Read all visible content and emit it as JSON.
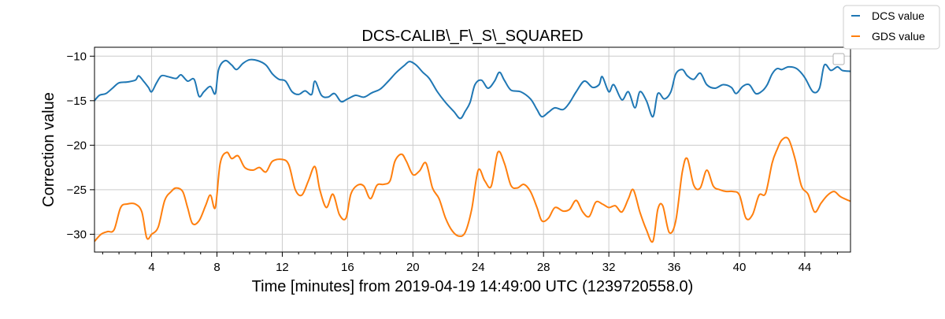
{
  "chart_data": {
    "type": "line",
    "title": "DCS-CALIB\\_F\\_S\\_SQUARED",
    "xlabel": "Time [minutes] from 2019-04-19 14:49:00 UTC (1239720558.0)",
    "ylabel": "Correction value",
    "xlim": [
      0.5,
      46.8
    ],
    "ylim": [
      -32,
      -9
    ],
    "xticks": [
      4,
      8,
      12,
      16,
      20,
      24,
      28,
      32,
      36,
      40,
      44
    ],
    "yticks": [
      -30,
      -25,
      -20,
      -15,
      -10
    ],
    "xtick_labels": [
      "4",
      "8",
      "12",
      "16",
      "20",
      "24",
      "28",
      "32",
      "36",
      "40",
      "44"
    ],
    "ytick_labels": [
      "−30",
      "−25",
      "−20",
      "−15",
      "−10"
    ],
    "grid": true,
    "legend_placement": "top-right-outside",
    "series": [
      {
        "name": "DCS value",
        "color": "#1f77b4",
        "points": [
          [
            0.5,
            -15.0
          ],
          [
            0.8,
            -14.4
          ],
          [
            1.2,
            -14.2
          ],
          [
            1.6,
            -13.6
          ],
          [
            2.0,
            -13.0
          ],
          [
            2.5,
            -12.9
          ],
          [
            3.0,
            -12.7
          ],
          [
            3.2,
            -12.2
          ],
          [
            3.5,
            -12.8
          ],
          [
            3.8,
            -13.5
          ],
          [
            4.0,
            -14.0
          ],
          [
            4.3,
            -13.0
          ],
          [
            4.6,
            -12.2
          ],
          [
            5.0,
            -12.3
          ],
          [
            5.5,
            -12.5
          ],
          [
            5.8,
            -12.1
          ],
          [
            6.2,
            -12.8
          ],
          [
            6.6,
            -12.6
          ],
          [
            6.9,
            -14.5
          ],
          [
            7.2,
            -14.0
          ],
          [
            7.6,
            -13.4
          ],
          [
            7.9,
            -14.2
          ],
          [
            8.1,
            -11.5
          ],
          [
            8.5,
            -10.5
          ],
          [
            8.9,
            -11.0
          ],
          [
            9.2,
            -11.5
          ],
          [
            9.6,
            -10.8
          ],
          [
            10.0,
            -10.4
          ],
          [
            10.5,
            -10.5
          ],
          [
            11.0,
            -11.0
          ],
          [
            11.4,
            -12.0
          ],
          [
            11.8,
            -12.6
          ],
          [
            12.2,
            -12.8
          ],
          [
            12.6,
            -14.0
          ],
          [
            13.0,
            -14.3
          ],
          [
            13.4,
            -13.9
          ],
          [
            13.8,
            -14.3
          ],
          [
            14.0,
            -12.8
          ],
          [
            14.4,
            -14.4
          ],
          [
            14.8,
            -14.6
          ],
          [
            15.2,
            -14.2
          ],
          [
            15.6,
            -15.1
          ],
          [
            16.0,
            -14.8
          ],
          [
            16.5,
            -14.4
          ],
          [
            17.0,
            -14.6
          ],
          [
            17.5,
            -14.1
          ],
          [
            18.0,
            -13.7
          ],
          [
            18.5,
            -12.8
          ],
          [
            19.0,
            -11.8
          ],
          [
            19.5,
            -11.0
          ],
          [
            19.8,
            -10.6
          ],
          [
            20.2,
            -11.0
          ],
          [
            20.6,
            -11.8
          ],
          [
            21.0,
            -12.5
          ],
          [
            21.5,
            -14.0
          ],
          [
            22.0,
            -15.2
          ],
          [
            22.5,
            -16.2
          ],
          [
            22.9,
            -17.0
          ],
          [
            23.2,
            -16.2
          ],
          [
            23.5,
            -15.2
          ],
          [
            23.8,
            -13.2
          ],
          [
            24.2,
            -12.7
          ],
          [
            24.6,
            -13.6
          ],
          [
            25.0,
            -12.8
          ],
          [
            25.3,
            -11.8
          ],
          [
            25.6,
            -12.7
          ],
          [
            26.0,
            -13.8
          ],
          [
            26.6,
            -14.0
          ],
          [
            27.2,
            -14.8
          ],
          [
            27.6,
            -16.0
          ],
          [
            27.9,
            -16.8
          ],
          [
            28.3,
            -16.3
          ],
          [
            28.7,
            -15.8
          ],
          [
            29.2,
            -16.0
          ],
          [
            29.6,
            -15.2
          ],
          [
            30.0,
            -14.0
          ],
          [
            30.5,
            -12.8
          ],
          [
            31.0,
            -13.5
          ],
          [
            31.4,
            -13.2
          ],
          [
            31.6,
            -12.3
          ],
          [
            32.0,
            -14.0
          ],
          [
            32.3,
            -13.2
          ],
          [
            32.8,
            -14.9
          ],
          [
            33.2,
            -14.0
          ],
          [
            33.6,
            -15.8
          ],
          [
            33.9,
            -14.0
          ],
          [
            34.3,
            -15.0
          ],
          [
            34.7,
            -16.8
          ],
          [
            35.0,
            -14.2
          ],
          [
            35.4,
            -14.8
          ],
          [
            35.8,
            -14.0
          ],
          [
            36.1,
            -12.0
          ],
          [
            36.5,
            -11.5
          ],
          [
            36.8,
            -12.2
          ],
          [
            37.2,
            -12.6
          ],
          [
            37.6,
            -11.9
          ],
          [
            38.0,
            -13.2
          ],
          [
            38.5,
            -13.6
          ],
          [
            39.0,
            -13.2
          ],
          [
            39.5,
            -13.5
          ],
          [
            39.8,
            -14.2
          ],
          [
            40.2,
            -13.4
          ],
          [
            40.6,
            -13.2
          ],
          [
            41.0,
            -14.2
          ],
          [
            41.4,
            -13.9
          ],
          [
            41.7,
            -13.2
          ],
          [
            42.0,
            -12.0
          ],
          [
            42.3,
            -11.4
          ],
          [
            42.6,
            -11.5
          ],
          [
            43.0,
            -11.2
          ],
          [
            43.5,
            -11.4
          ],
          [
            44.0,
            -12.4
          ],
          [
            44.5,
            -14.0
          ],
          [
            44.9,
            -13.6
          ],
          [
            45.2,
            -11.0
          ],
          [
            45.6,
            -11.6
          ],
          [
            46.0,
            -11.2
          ],
          [
            46.3,
            -11.6
          ],
          [
            46.8,
            -11.7
          ]
        ]
      },
      {
        "name": "GDS value",
        "color": "#ff7f0e",
        "points": [
          [
            0.5,
            -30.8
          ],
          [
            0.9,
            -30.0
          ],
          [
            1.3,
            -29.7
          ],
          [
            1.7,
            -29.5
          ],
          [
            2.1,
            -27.0
          ],
          [
            2.5,
            -26.6
          ],
          [
            3.0,
            -26.6
          ],
          [
            3.4,
            -27.5
          ],
          [
            3.7,
            -30.4
          ],
          [
            4.0,
            -30.0
          ],
          [
            4.4,
            -29.2
          ],
          [
            4.8,
            -26.2
          ],
          [
            5.2,
            -25.2
          ],
          [
            5.5,
            -24.8
          ],
          [
            5.9,
            -25.2
          ],
          [
            6.2,
            -27.0
          ],
          [
            6.5,
            -28.8
          ],
          [
            6.9,
            -28.5
          ],
          [
            7.3,
            -26.8
          ],
          [
            7.6,
            -25.6
          ],
          [
            7.9,
            -27.0
          ],
          [
            8.2,
            -22.0
          ],
          [
            8.6,
            -20.8
          ],
          [
            8.9,
            -21.5
          ],
          [
            9.3,
            -21.2
          ],
          [
            9.7,
            -22.5
          ],
          [
            10.2,
            -22.8
          ],
          [
            10.6,
            -22.5
          ],
          [
            11.0,
            -23.0
          ],
          [
            11.4,
            -21.8
          ],
          [
            12.0,
            -21.6
          ],
          [
            12.4,
            -22.2
          ],
          [
            12.8,
            -25.0
          ],
          [
            13.2,
            -25.6
          ],
          [
            13.6,
            -24.0
          ],
          [
            14.0,
            -22.4
          ],
          [
            14.3,
            -25.0
          ],
          [
            14.7,
            -27.0
          ],
          [
            15.1,
            -25.5
          ],
          [
            15.5,
            -27.8
          ],
          [
            15.9,
            -28.2
          ],
          [
            16.2,
            -25.5
          ],
          [
            16.6,
            -24.5
          ],
          [
            17.0,
            -24.6
          ],
          [
            17.4,
            -26.0
          ],
          [
            17.8,
            -24.5
          ],
          [
            18.2,
            -24.4
          ],
          [
            18.6,
            -24.0
          ],
          [
            18.9,
            -21.8
          ],
          [
            19.3,
            -21.0
          ],
          [
            19.6,
            -21.8
          ],
          [
            20.0,
            -23.3
          ],
          [
            20.4,
            -22.9
          ],
          [
            20.8,
            -22.0
          ],
          [
            21.2,
            -24.8
          ],
          [
            21.6,
            -26.0
          ],
          [
            22.0,
            -28.2
          ],
          [
            22.4,
            -29.6
          ],
          [
            22.8,
            -30.2
          ],
          [
            23.2,
            -29.8
          ],
          [
            23.6,
            -27.2
          ],
          [
            24.0,
            -22.8
          ],
          [
            24.4,
            -24.0
          ],
          [
            24.8,
            -24.6
          ],
          [
            25.2,
            -20.8
          ],
          [
            25.6,
            -22.0
          ],
          [
            26.0,
            -24.5
          ],
          [
            26.4,
            -24.8
          ],
          [
            26.8,
            -24.4
          ],
          [
            27.2,
            -25.2
          ],
          [
            27.6,
            -27.0
          ],
          [
            27.9,
            -28.5
          ],
          [
            28.3,
            -28.2
          ],
          [
            28.7,
            -27.0
          ],
          [
            29.2,
            -27.4
          ],
          [
            29.6,
            -27.2
          ],
          [
            30.0,
            -26.2
          ],
          [
            30.4,
            -27.5
          ],
          [
            30.8,
            -28.0
          ],
          [
            31.2,
            -26.4
          ],
          [
            31.6,
            -26.6
          ],
          [
            32.0,
            -27.0
          ],
          [
            32.4,
            -26.8
          ],
          [
            32.8,
            -27.5
          ],
          [
            33.2,
            -26.0
          ],
          [
            33.5,
            -25.0
          ],
          [
            33.9,
            -27.5
          ],
          [
            34.3,
            -29.5
          ],
          [
            34.7,
            -30.8
          ],
          [
            35.0,
            -27.2
          ],
          [
            35.3,
            -26.8
          ],
          [
            35.7,
            -29.8
          ],
          [
            36.1,
            -28.5
          ],
          [
            36.5,
            -23.0
          ],
          [
            36.8,
            -21.5
          ],
          [
            37.2,
            -24.5
          ],
          [
            37.6,
            -24.8
          ],
          [
            38.0,
            -22.8
          ],
          [
            38.4,
            -24.6
          ],
          [
            38.8,
            -25.0
          ],
          [
            39.2,
            -25.2
          ],
          [
            39.6,
            -25.2
          ],
          [
            40.0,
            -25.6
          ],
          [
            40.4,
            -28.2
          ],
          [
            40.8,
            -27.8
          ],
          [
            41.2,
            -25.6
          ],
          [
            41.6,
            -25.4
          ],
          [
            42.0,
            -22.0
          ],
          [
            42.3,
            -20.5
          ],
          [
            42.6,
            -19.4
          ],
          [
            43.0,
            -19.3
          ],
          [
            43.4,
            -21.5
          ],
          [
            43.8,
            -24.6
          ],
          [
            44.2,
            -25.5
          ],
          [
            44.6,
            -27.5
          ],
          [
            45.0,
            -26.5
          ],
          [
            45.4,
            -25.6
          ],
          [
            45.8,
            -25.2
          ],
          [
            46.2,
            -25.8
          ],
          [
            46.8,
            -26.3
          ]
        ]
      }
    ]
  }
}
